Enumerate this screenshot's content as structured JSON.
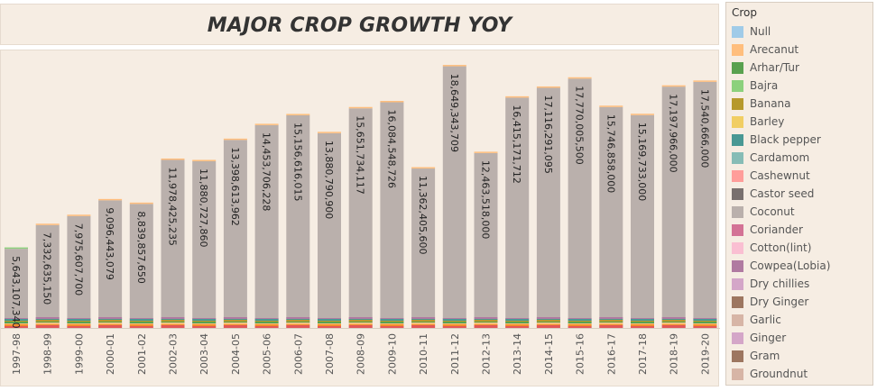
{
  "chart_data": {
    "type": "bar",
    "title": "MAJOR CROP GROWTH YOY",
    "stacked": true,
    "categories": [
      "1997-98",
      "1998-99",
      "1999-00",
      "2000-01",
      "2001-02",
      "2002-03",
      "2003-04",
      "2004-05",
      "2005-06",
      "2006-07",
      "2007-08",
      "2008-09",
      "2009-10",
      "2010-11",
      "2011-12",
      "2012-13",
      "2013-14",
      "2014-15",
      "2015-16",
      "2016-17",
      "2017-18",
      "2018-19",
      "2019-20"
    ],
    "totals": [
      5643107340,
      7332635150,
      7975607700,
      9096443079,
      8839857650,
      11978425235,
      11880727860,
      13398613962,
      14453706228,
      15156616015,
      13880790900,
      15651734117,
      16084548726,
      11362405600,
      18649343709,
      12463518000,
      16415171712,
      17116291095,
      17770005500,
      15746858000,
      15169733000,
      17197966000,
      17540666000
    ],
    "total_labels": [
      "5,643,107,340",
      "7,332,635,150",
      "7,975,607,700",
      "9,096,443,079",
      "8,839,857,650",
      "11,978,425,235",
      "11,880,727,860",
      "13,398,613,962",
      "14,453,706,228",
      "15,156,616,015",
      "13,880,790,900",
      "15,651,734,117",
      "16,084,548,726",
      "11,362,405,600",
      "18,649,343,709",
      "12,463,518,000",
      "16,415,171,712",
      "17,116,291,095",
      "17,770,005,500",
      "15,746,858,000",
      "15,169,733,000",
      "17,197,966,000",
      "17,540,666,000"
    ],
    "dominant_series": "Coconut",
    "ylim": [
      0,
      19200000000
    ],
    "grid": false,
    "legend_position": "right"
  },
  "legend": {
    "title": "Crop",
    "items": [
      {
        "label": "Null",
        "color": "#a0cbe8"
      },
      {
        "label": "Arecanut",
        "color": "#ffbe7d"
      },
      {
        "label": "Arhar/Tur",
        "color": "#59a14f"
      },
      {
        "label": "Bajra",
        "color": "#8cd17d"
      },
      {
        "label": "Banana",
        "color": "#b6992d"
      },
      {
        "label": "Barley",
        "color": "#f1ce63"
      },
      {
        "label": "Black pepper",
        "color": "#499894"
      },
      {
        "label": "Cardamom",
        "color": "#86bcb6"
      },
      {
        "label": "Cashewnut",
        "color": "#ff9d9a"
      },
      {
        "label": "Castor seed",
        "color": "#79706e"
      },
      {
        "label": "Coconut",
        "color": "#bab0ac"
      },
      {
        "label": "Coriander",
        "color": "#d37295"
      },
      {
        "label": "Cotton(lint)",
        "color": "#fabfd2"
      },
      {
        "label": "Cowpea(Lobia)",
        "color": "#b07aa1"
      },
      {
        "label": "Dry chillies",
        "color": "#d4a6c8"
      },
      {
        "label": "Dry Ginger",
        "color": "#9d7660"
      },
      {
        "label": "Garlic",
        "color": "#d7b5a6"
      },
      {
        "label": "Ginger",
        "color": "#d4a6c8"
      },
      {
        "label": "Gram",
        "color": "#9d7660"
      },
      {
        "label": "Groundnut",
        "color": "#d7b5a6"
      }
    ]
  }
}
